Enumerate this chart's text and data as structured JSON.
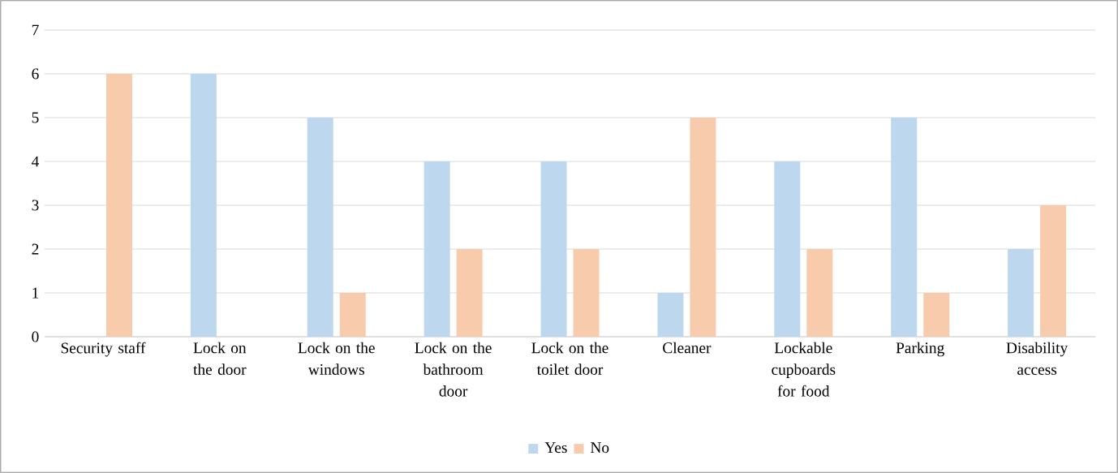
{
  "chart_data": {
    "type": "bar",
    "categories": [
      "Security staff",
      "Lock on the door",
      "Lock on the windows",
      "Lock on the bathroom door",
      "Lock on the toilet door",
      "Cleaner",
      "Lockable cupboards for food",
      "Parking",
      "Disability access"
    ],
    "series": [
      {
        "name": "Yes",
        "color": "#bdd7ee",
        "values": [
          0,
          6,
          5,
          4,
          4,
          1,
          4,
          5,
          2
        ]
      },
      {
        "name": "No",
        "color": "#f8cbad",
        "values": [
          6,
          0,
          1,
          2,
          2,
          5,
          2,
          1,
          3
        ]
      }
    ],
    "ylim": [
      0,
      7
    ],
    "yticks": [
      0,
      1,
      2,
      3,
      4,
      5,
      6,
      7
    ],
    "grid": "y",
    "legend": "bottom"
  }
}
